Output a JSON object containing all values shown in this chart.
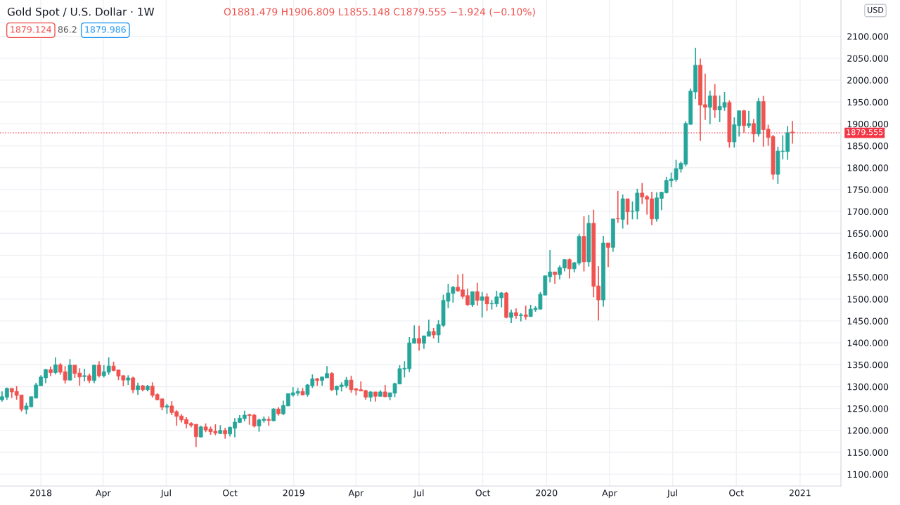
{
  "chart_data": {
    "type": "candlestick",
    "title": "Gold Spot / U.S. Dollar · 1W",
    "ylabel": "USD",
    "annotations": [
      "O1881.479 H1906.809 L1855.148 C1879.555 −1.924 (−0.10%)",
      "1879.124",
      "86.2",
      "1879.986"
    ],
    "colors": [
      "#26a69a",
      "#26a69a",
      "#ef5350",
      "#ef5350",
      "#ef5350",
      "#26a69a",
      "#26a69a",
      "#26a69a",
      "#26a69a",
      "#26a69a",
      "#ef5350",
      "#26a69a",
      "#ef5350",
      "#ef5350",
      "#26a69a",
      "#ef5350",
      "#ef5350",
      "#26a69a",
      "#ef5350",
      "#26a69a",
      "#ef5350",
      "#26a69a",
      "#26a69a",
      "#ef5350",
      "#ef5350",
      "#ef5350",
      "#26a69a",
      "#ef5350",
      "#26a69a",
      "#ef5350",
      "#26a69a",
      "#ef5350",
      "#ef5350",
      "#ef5350",
      "#26a69a",
      "#ef5350",
      "#ef5350",
      "#ef5350",
      "#ef5350",
      "#ef5350",
      "#ef5350",
      "#26a69a",
      "#ef5350",
      "#ef5350",
      "#ef5350",
      "#26a69a",
      "#ef5350",
      "#26a69a",
      "#26a69a",
      "#26a69a",
      "#26a69a",
      "#ef5350",
      "#ef5350",
      "#26a69a",
      "#26a69a",
      "#ef5350",
      "#26a69a",
      "#ef5350",
      "#26a69a",
      "#26a69a",
      "#26a69a",
      "#26a69a",
      "#ef5350",
      "#26a69a",
      "#26a69a",
      "#ef5350",
      "#26a69a",
      "#26a69a",
      "#ef5350",
      "#26a69a",
      "#26a69a",
      "#26a69a",
      "#ef5350",
      "#ef5350",
      "#ef5350",
      "#ef5350",
      "#26a69a",
      "#ef5350",
      "#26a69a",
      "#ef5350",
      "#26a69a",
      "#26a69a",
      "#26a69a",
      "#26a69a",
      "#26a69a",
      "#26a69a",
      "#ef5350",
      "#26a69a",
      "#26a69a",
      "#ef5350",
      "#26a69a",
      "#26a69a",
      "#26a69a",
      "#26a69a",
      "#ef5350",
      "#ef5350",
      "#ef5350",
      "#26a69a",
      "#ef5350",
      "#26a69a",
      "#ef5350",
      "#26a69a",
      "#26a69a",
      "#26a69a",
      "#ef5350",
      "#26a69a",
      "#ef5350",
      "#26a69a",
      "#ef5350",
      "#26a69a",
      "#26a69a",
      "#26a69a",
      "#26a69a",
      "#26a69a",
      "#ef5350",
      "#26a69a",
      "#26a69a",
      "#ef5350",
      "#26a69a",
      "#26a69a",
      "#ef5350",
      "#26a69a",
      "#ef5350",
      "#ef5350",
      "#26a69a",
      "#ef5350",
      "#26a69a",
      "#ef5350",
      "#26a69a",
      "#ef5350",
      "#26a69a",
      "#26a69a",
      "#ef5350",
      "#ef5350",
      "#ef5350",
      "#26a69a",
      "#26a69a",
      "#26a69a",
      "#26a69a",
      "#26a69a",
      "#26a69a",
      "#26a69a",
      "#26a69a",
      "#26a69a",
      "#ef5350",
      "#ef5350",
      "#26a69a",
      "#ef5350",
      "#26a69a",
      "#26a69a",
      "#ef5350",
      "#26a69a",
      "#26a69a",
      "#ef5350",
      "#26a69a",
      "#ef5350",
      "#26a69a",
      "#ef5350",
      "#ef5350",
      "#ef5350",
      "#26a69a",
      "#26a69a",
      "#26a69a",
      "#ef5350"
    ],
    "x": [
      "2017-11-06",
      "2017-11-13",
      "2017-11-20",
      "2017-11-27",
      "2017-12-04",
      "2017-12-11",
      "2017-12-18",
      "2017-12-25",
      "2018-01-01",
      "2018-01-08",
      "2018-01-15",
      "2018-01-22",
      "2018-01-29",
      "2018-02-05",
      "2018-02-12",
      "2018-02-19",
      "2018-02-26",
      "2018-03-05",
      "2018-03-12",
      "2018-03-19",
      "2018-03-26",
      "2018-04-02",
      "2018-04-09",
      "2018-04-16",
      "2018-04-23",
      "2018-04-30",
      "2018-05-07",
      "2018-05-14",
      "2018-05-21",
      "2018-05-28",
      "2018-06-04",
      "2018-06-11",
      "2018-06-18",
      "2018-06-25",
      "2018-07-02",
      "2018-07-09",
      "2018-07-16",
      "2018-07-23",
      "2018-07-30",
      "2018-08-06",
      "2018-08-13",
      "2018-08-20",
      "2018-08-27",
      "2018-09-03",
      "2018-09-10",
      "2018-09-17",
      "2018-09-24",
      "2018-10-01",
      "2018-10-08",
      "2018-10-15",
      "2018-10-22",
      "2018-10-29",
      "2018-11-05",
      "2018-11-12",
      "2018-11-19",
      "2018-11-26",
      "2018-12-03",
      "2018-12-10",
      "2018-12-17",
      "2018-12-24",
      "2018-12-31",
      "2019-01-07",
      "2019-01-14",
      "2019-01-21",
      "2019-01-28",
      "2019-02-04",
      "2019-02-11",
      "2019-02-18",
      "2019-02-25",
      "2019-03-04",
      "2019-03-11",
      "2019-03-18",
      "2019-03-25",
      "2019-04-01",
      "2019-04-08",
      "2019-04-15",
      "2019-04-22",
      "2019-04-29",
      "2019-05-06",
      "2019-05-13",
      "2019-05-20",
      "2019-05-27",
      "2019-06-03",
      "2019-06-10",
      "2019-06-17",
      "2019-06-24",
      "2019-07-01",
      "2019-07-08",
      "2019-07-15",
      "2019-07-22",
      "2019-07-29",
      "2019-08-05",
      "2019-08-12",
      "2019-08-19",
      "2019-08-26",
      "2019-09-02",
      "2019-09-09",
      "2019-09-16",
      "2019-09-23",
      "2019-09-30",
      "2019-10-07",
      "2019-10-14",
      "2019-10-21",
      "2019-10-28",
      "2019-11-04",
      "2019-11-11",
      "2019-11-18",
      "2019-11-25",
      "2019-12-02",
      "2019-12-09",
      "2019-12-16",
      "2019-12-23",
      "2019-12-30",
      "2020-01-06",
      "2020-01-13",
      "2020-01-20",
      "2020-01-27",
      "2020-02-03",
      "2020-02-10",
      "2020-02-17",
      "2020-02-24",
      "2020-03-02",
      "2020-03-09",
      "2020-03-16",
      "2020-03-23",
      "2020-03-30",
      "2020-04-06",
      "2020-04-13",
      "2020-04-20",
      "2020-04-27",
      "2020-05-04",
      "2020-05-11",
      "2020-05-18",
      "2020-05-25",
      "2020-06-01",
      "2020-06-08",
      "2020-06-15",
      "2020-06-22",
      "2020-06-29",
      "2020-07-06",
      "2020-07-13",
      "2020-07-20",
      "2020-07-27",
      "2020-08-03",
      "2020-08-10",
      "2020-08-17",
      "2020-08-24",
      "2020-08-31",
      "2020-09-07",
      "2020-09-14",
      "2020-09-21",
      "2020-09-28",
      "2020-10-05",
      "2020-10-12",
      "2020-10-19",
      "2020-10-26",
      "2020-11-02",
      "2020-11-09",
      "2020-11-16",
      "2020-11-23",
      "2020-11-30",
      "2020-12-07",
      "2020-12-14",
      "2020-12-21"
    ],
    "ohlc": [
      [
        1270,
        1289,
        1266,
        1277
      ],
      [
        1276,
        1298,
        1270,
        1296
      ],
      [
        1296,
        1296,
        1274,
        1288
      ],
      [
        1289,
        1301,
        1270,
        1280
      ],
      [
        1281,
        1281,
        1243,
        1248
      ],
      [
        1248,
        1263,
        1237,
        1256
      ],
      [
        1254,
        1277,
        1253,
        1277
      ],
      [
        1274,
        1309,
        1273,
        1304
      ],
      [
        1302,
        1326,
        1302,
        1322
      ],
      [
        1320,
        1341,
        1308,
        1339
      ],
      [
        1339,
        1346,
        1324,
        1332
      ],
      [
        1332,
        1367,
        1328,
        1350
      ],
      [
        1350,
        1354,
        1327,
        1333
      ],
      [
        1334,
        1347,
        1307,
        1315
      ],
      [
        1315,
        1363,
        1314,
        1349
      ],
      [
        1349,
        1349,
        1320,
        1330
      ],
      [
        1331,
        1342,
        1302,
        1322
      ],
      [
        1323,
        1341,
        1312,
        1325
      ],
      [
        1325,
        1330,
        1308,
        1314
      ],
      [
        1314,
        1350,
        1308,
        1349
      ],
      [
        1349,
        1358,
        1321,
        1325
      ],
      [
        1325,
        1349,
        1321,
        1334
      ],
      [
        1333,
        1367,
        1327,
        1347
      ],
      [
        1347,
        1357,
        1335,
        1337
      ],
      [
        1338,
        1338,
        1315,
        1324
      ],
      [
        1325,
        1326,
        1301,
        1315
      ],
      [
        1315,
        1326,
        1304,
        1320
      ],
      [
        1320,
        1323,
        1285,
        1293
      ],
      [
        1293,
        1309,
        1281,
        1302
      ],
      [
        1302,
        1304,
        1289,
        1293
      ],
      [
        1293,
        1304,
        1289,
        1301
      ],
      [
        1301,
        1310,
        1275,
        1280
      ],
      [
        1282,
        1285,
        1269,
        1270
      ],
      [
        1272,
        1273,
        1246,
        1253
      ],
      [
        1253,
        1261,
        1238,
        1256
      ],
      [
        1256,
        1267,
        1235,
        1241
      ],
      [
        1243,
        1246,
        1211,
        1232
      ],
      [
        1233,
        1237,
        1218,
        1224
      ],
      [
        1225,
        1230,
        1205,
        1215
      ],
      [
        1216,
        1219,
        1207,
        1212
      ],
      [
        1214,
        1214,
        1162,
        1186
      ],
      [
        1185,
        1211,
        1184,
        1208
      ],
      [
        1208,
        1216,
        1196,
        1201
      ],
      [
        1203,
        1209,
        1190,
        1197
      ],
      [
        1198,
        1214,
        1189,
        1194
      ],
      [
        1193,
        1212,
        1192,
        1200
      ],
      [
        1200,
        1206,
        1181,
        1192
      ],
      [
        1192,
        1209,
        1186,
        1207
      ],
      [
        1205,
        1228,
        1184,
        1219
      ],
      [
        1218,
        1235,
        1218,
        1228
      ],
      [
        1227,
        1245,
        1221,
        1235
      ],
      [
        1236,
        1238,
        1213,
        1234
      ],
      [
        1235,
        1238,
        1207,
        1210
      ],
      [
        1210,
        1227,
        1197,
        1224
      ],
      [
        1223,
        1232,
        1218,
        1226
      ],
      [
        1225,
        1232,
        1211,
        1223
      ],
      [
        1222,
        1251,
        1221,
        1249
      ],
      [
        1249,
        1253,
        1234,
        1238
      ],
      [
        1238,
        1268,
        1235,
        1257
      ],
      [
        1256,
        1284,
        1256,
        1284
      ],
      [
        1281,
        1299,
        1277,
        1286
      ],
      [
        1285,
        1297,
        1279,
        1289
      ],
      [
        1289,
        1297,
        1280,
        1281
      ],
      [
        1282,
        1306,
        1277,
        1304
      ],
      [
        1302,
        1328,
        1297,
        1318
      ],
      [
        1318,
        1320,
        1302,
        1314
      ],
      [
        1314,
        1323,
        1302,
        1322
      ],
      [
        1320,
        1347,
        1320,
        1330
      ],
      [
        1330,
        1333,
        1290,
        1293
      ],
      [
        1293,
        1302,
        1280,
        1301
      ],
      [
        1300,
        1310,
        1289,
        1304
      ],
      [
        1302,
        1322,
        1297,
        1315
      ],
      [
        1315,
        1325,
        1286,
        1293
      ],
      [
        1295,
        1297,
        1280,
        1292
      ],
      [
        1293,
        1312,
        1290,
        1290
      ],
      [
        1291,
        1293,
        1270,
        1276
      ],
      [
        1276,
        1290,
        1266,
        1288
      ],
      [
        1288,
        1288,
        1266,
        1278
      ],
      [
        1278,
        1292,
        1277,
        1288
      ],
      [
        1288,
        1304,
        1276,
        1277
      ],
      [
        1277,
        1286,
        1269,
        1286
      ],
      [
        1285,
        1309,
        1276,
        1307
      ],
      [
        1306,
        1349,
        1306,
        1341
      ],
      [
        1340,
        1358,
        1321,
        1342
      ],
      [
        1341,
        1413,
        1333,
        1400
      ],
      [
        1399,
        1440,
        1399,
        1410
      ],
      [
        1410,
        1439,
        1382,
        1399
      ],
      [
        1399,
        1416,
        1386,
        1416
      ],
      [
        1415,
        1453,
        1415,
        1426
      ],
      [
        1426,
        1434,
        1410,
        1418
      ],
      [
        1418,
        1452,
        1400,
        1442
      ],
      [
        1440,
        1510,
        1436,
        1497
      ],
      [
        1495,
        1535,
        1479,
        1514
      ],
      [
        1513,
        1530,
        1492,
        1527
      ],
      [
        1527,
        1556,
        1516,
        1519
      ],
      [
        1521,
        1558,
        1501,
        1506
      ],
      [
        1508,
        1524,
        1484,
        1487
      ],
      [
        1487,
        1517,
        1482,
        1517
      ],
      [
        1517,
        1537,
        1485,
        1497
      ],
      [
        1497,
        1516,
        1458,
        1505
      ],
      [
        1505,
        1513,
        1473,
        1489
      ],
      [
        1489,
        1498,
        1476,
        1490
      ],
      [
        1489,
        1519,
        1482,
        1505
      ],
      [
        1503,
        1516,
        1481,
        1514
      ],
      [
        1514,
        1516,
        1456,
        1458
      ],
      [
        1458,
        1476,
        1445,
        1469
      ],
      [
        1469,
        1479,
        1455,
        1462
      ],
      [
        1462,
        1468,
        1449,
        1464
      ],
      [
        1464,
        1485,
        1453,
        1460
      ],
      [
        1460,
        1487,
        1460,
        1477
      ],
      [
        1476,
        1484,
        1471,
        1479
      ],
      [
        1477,
        1516,
        1476,
        1511
      ],
      [
        1509,
        1554,
        1509,
        1553
      ],
      [
        1551,
        1612,
        1538,
        1562
      ],
      [
        1562,
        1562,
        1535,
        1556
      ],
      [
        1556,
        1577,
        1545,
        1572
      ],
      [
        1571,
        1591,
        1563,
        1590
      ],
      [
        1590,
        1593,
        1547,
        1569
      ],
      [
        1569,
        1585,
        1561,
        1583
      ],
      [
        1582,
        1649,
        1577,
        1643
      ],
      [
        1643,
        1689,
        1563,
        1585
      ],
      [
        1585,
        1692,
        1574,
        1673
      ],
      [
        1673,
        1704,
        1504,
        1529
      ],
      [
        1530,
        1575,
        1451,
        1498
      ],
      [
        1498,
        1644,
        1483,
        1628
      ],
      [
        1628,
        1628,
        1573,
        1618
      ],
      [
        1618,
        1683,
        1608,
        1683
      ],
      [
        1684,
        1747,
        1674,
        1683
      ],
      [
        1682,
        1739,
        1661,
        1729
      ],
      [
        1729,
        1729,
        1670,
        1699
      ],
      [
        1700,
        1723,
        1682,
        1701
      ],
      [
        1701,
        1752,
        1682,
        1742
      ],
      [
        1742,
        1765,
        1717,
        1733
      ],
      [
        1734,
        1737,
        1693,
        1728
      ],
      [
        1729,
        1745,
        1669,
        1683
      ],
      [
        1683,
        1744,
        1677,
        1731
      ],
      [
        1730,
        1745,
        1703,
        1744
      ],
      [
        1743,
        1779,
        1741,
        1771
      ],
      [
        1770,
        1789,
        1756,
        1774
      ],
      [
        1773,
        1818,
        1768,
        1798
      ],
      [
        1797,
        1814,
        1789,
        1810
      ],
      [
        1808,
        1906,
        1803,
        1901
      ],
      [
        1899,
        1981,
        1898,
        1975
      ],
      [
        1973,
        2074,
        1957,
        2034
      ],
      [
        2034,
        2049,
        1861,
        1943
      ],
      [
        1944,
        2015,
        1909,
        1938
      ],
      [
        1938,
        1976,
        1899,
        1964
      ],
      [
        1964,
        1991,
        1914,
        1932
      ],
      [
        1932,
        1965,
        1904,
        1940
      ],
      [
        1938,
        1973,
        1930,
        1949
      ],
      [
        1949,
        1954,
        1846,
        1859
      ],
      [
        1859,
        1915,
        1846,
        1898
      ],
      [
        1896,
        1930,
        1871,
        1930
      ],
      [
        1930,
        1932,
        1880,
        1896
      ],
      [
        1896,
        1930,
        1891,
        1901
      ],
      [
        1901,
        1911,
        1858,
        1877
      ],
      [
        1877,
        1959,
        1871,
        1951
      ],
      [
        1951,
        1964,
        1848,
        1887
      ],
      [
        1888,
        1898,
        1850,
        1869
      ],
      [
        1871,
        1875,
        1773,
        1785
      ],
      [
        1785,
        1848,
        1763,
        1838
      ],
      [
        1837,
        1874,
        1819,
        1838
      ],
      [
        1837,
        1895,
        1818,
        1880
      ],
      [
        1881.479,
        1906.809,
        1855.148,
        1879.555
      ]
    ],
    "xlim": [
      "2017-11-03",
      "2021-03-01"
    ],
    "xticks": [
      {
        "value": "2018-01-01",
        "label": "2018"
      },
      {
        "value": "2018-04-01",
        "label": "Apr"
      },
      {
        "value": "2018-07-01",
        "label": "Jul"
      },
      {
        "value": "2018-10-01",
        "label": "Oct"
      },
      {
        "value": "2019-01-01",
        "label": "2019"
      },
      {
        "value": "2019-04-01",
        "label": "Apr"
      },
      {
        "value": "2019-07-01",
        "label": "Jul"
      },
      {
        "value": "2019-10-01",
        "label": "Oct"
      },
      {
        "value": "2020-01-01",
        "label": "2020"
      },
      {
        "value": "2020-04-01",
        "label": "Apr"
      },
      {
        "value": "2020-07-01",
        "label": "Jul"
      },
      {
        "value": "2020-10-01",
        "label": "Oct"
      },
      {
        "value": "2021-01-01",
        "label": "2021"
      }
    ],
    "ylim": [
      1073,
      2183
    ],
    "yticks": [
      {
        "value": 1100,
        "label": "1100.000"
      },
      {
        "value": 1150,
        "label": "1150.000"
      },
      {
        "value": 1200,
        "label": "1200.000"
      },
      {
        "value": 1250,
        "label": "1250.000"
      },
      {
        "value": 1300,
        "label": "1300.000"
      },
      {
        "value": 1350,
        "label": "1350.000"
      },
      {
        "value": 1400,
        "label": "1400.000"
      },
      {
        "value": 1450,
        "label": "1450.000"
      },
      {
        "value": 1500,
        "label": "1500.000"
      },
      {
        "value": 1550,
        "label": "1550.000"
      },
      {
        "value": 1600,
        "label": "1600.000"
      },
      {
        "value": 1650,
        "label": "1650.000"
      },
      {
        "value": 1700,
        "label": "1700.000"
      },
      {
        "value": 1750,
        "label": "1750.000"
      },
      {
        "value": 1800,
        "label": "1800.000"
      },
      {
        "value": 1850,
        "label": "1850.000"
      },
      {
        "value": 1900,
        "label": "1900.000"
      },
      {
        "value": 1950,
        "label": "1950.000"
      },
      {
        "value": 2000,
        "label": "2000.000"
      },
      {
        "value": 2050,
        "label": "2050.000"
      },
      {
        "value": 2100,
        "label": "2100.000"
      }
    ],
    "ref_lines": [
      {
        "axis": "y",
        "value": 1879.555,
        "label": "1879.555",
        "color": "#f23645",
        "line_style": "dotted"
      }
    ],
    "grid": true
  }
}
